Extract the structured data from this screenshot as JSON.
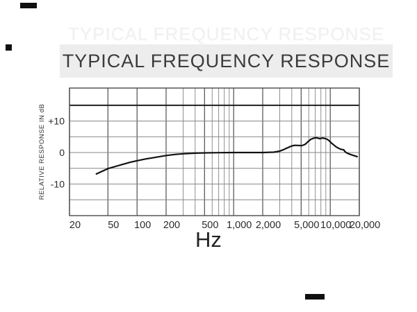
{
  "banner": {
    "title": "TYPICAL FREQUENCY RESPONSE",
    "bg_color": "#ededed",
    "text_color": "#3b3b3b"
  },
  "scan_artifacts": {
    "color": "#101010",
    "marks": [
      "top-left-bar",
      "left-edge-square",
      "bottom-right-bar"
    ]
  },
  "chart_data": {
    "type": "line",
    "title": "TYPICAL FREQUENCY RESPONSE",
    "xlabel": "Hz",
    "ylabel": "RELATIVE RESPONSE IN dB",
    "x_scale": "log",
    "x_range": [
      20,
      20000
    ],
    "y_range_db": [
      -20,
      20.5
    ],
    "grid": "on",
    "legend": "none",
    "x_ticks": [
      {
        "label": "20",
        "f": 20
      },
      {
        "label": "50",
        "f": 50
      },
      {
        "label": "100",
        "f": 100
      },
      {
        "label": "200",
        "f": 200
      },
      {
        "label": "500",
        "f": 500
      },
      {
        "label": "1,000",
        "f": 1000
      },
      {
        "label": "2,000",
        "f": 2000
      },
      {
        "label": "5,000",
        "f": 5000
      },
      {
        "label": "10,000",
        "f": 10000
      },
      {
        "label": "20,000",
        "f": 20000
      }
    ],
    "y_ticks": [
      {
        "label": "+10",
        "db": 10
      },
      {
        "label": "0",
        "db": 0
      },
      {
        "label": "-10",
        "db": -10
      }
    ],
    "x_gridlines_minor": [
      300,
      400,
      600,
      700,
      800,
      900,
      3000,
      4000,
      6000,
      7000,
      8000,
      9000
    ],
    "y_gridlines_db": [
      15,
      10,
      5,
      0,
      -5,
      -10,
      -15
    ],
    "emphasized_y_gridline_db": 15,
    "series": [
      {
        "name": "typical-frequency-response",
        "color": "#111111",
        "points": [
          [
            38,
            -6.8
          ],
          [
            44,
            -5.9
          ],
          [
            50,
            -5.1
          ],
          [
            60,
            -4.4
          ],
          [
            70,
            -3.8
          ],
          [
            85,
            -3.1
          ],
          [
            100,
            -2.6
          ],
          [
            125,
            -2.0
          ],
          [
            150,
            -1.6
          ],
          [
            175,
            -1.25
          ],
          [
            200,
            -0.95
          ],
          [
            250,
            -0.6
          ],
          [
            300,
            -0.4
          ],
          [
            400,
            -0.2
          ],
          [
            500,
            -0.1
          ],
          [
            700,
            -0.05
          ],
          [
            1000,
            0
          ],
          [
            1500,
            0
          ],
          [
            2000,
            0
          ],
          [
            2600,
            0.1
          ],
          [
            3000,
            0.45
          ],
          [
            3300,
            0.95
          ],
          [
            3600,
            1.5
          ],
          [
            4000,
            2.1
          ],
          [
            4300,
            2.3
          ],
          [
            4700,
            2.25
          ],
          [
            5100,
            2.2
          ],
          [
            5500,
            2.6
          ],
          [
            5900,
            3.5
          ],
          [
            6300,
            4.2
          ],
          [
            6800,
            4.6
          ],
          [
            7200,
            4.7
          ],
          [
            7800,
            4.4
          ],
          [
            8300,
            4.6
          ],
          [
            8800,
            4.5
          ],
          [
            9300,
            4.2
          ],
          [
            9800,
            3.7
          ],
          [
            10300,
            3.0
          ],
          [
            10800,
            2.5
          ],
          [
            11500,
            1.8
          ],
          [
            12300,
            1.3
          ],
          [
            13000,
            1.0
          ],
          [
            13800,
            0.85
          ],
          [
            14200,
            0.3
          ],
          [
            14800,
            -0.1
          ],
          [
            15500,
            -0.4
          ],
          [
            16500,
            -0.7
          ],
          [
            17500,
            -0.95
          ],
          [
            19000,
            -1.3
          ]
        ]
      }
    ]
  }
}
